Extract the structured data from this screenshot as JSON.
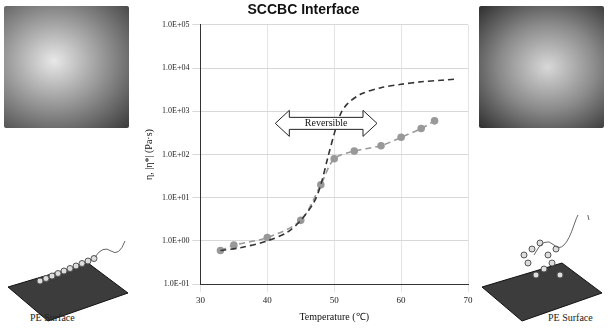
{
  "chart_data": {
    "type": "line",
    "title": "SCCBC Interface",
    "x_label": "Temperature (℃)",
    "y_label": "η, |η*| (Pa·s)",
    "log": "y",
    "grid": true,
    "xlim": [
      30,
      70
    ],
    "xticks": [
      30,
      40,
      50,
      60,
      70
    ],
    "ylim": [
      0.1,
      100000
    ],
    "yticks": [
      {
        "value": 0.1,
        "label": "1.0E-01"
      },
      {
        "value": 1,
        "label": "1.0E+00"
      },
      {
        "value": 10,
        "label": "1.0E+01"
      },
      {
        "value": 100,
        "label": "1.0E+02"
      },
      {
        "value": 1000,
        "label": "1.0E+03"
      },
      {
        "value": 10000,
        "label": "1.0E+04"
      },
      {
        "value": 100000,
        "label": "1.0E+05"
      }
    ],
    "series": [
      {
        "color": "#333333",
        "line_style": "dashed",
        "marker": "none",
        "x": [
          33,
          36,
          40,
          43,
          45,
          47,
          48,
          49,
          50,
          51,
          52,
          54,
          57,
          60,
          63,
          66,
          68
        ],
        "values": [
          0.6,
          0.7,
          1.0,
          1.6,
          3,
          8,
          20,
          80,
          300,
          900,
          1500,
          2500,
          3500,
          4200,
          4800,
          5200,
          5500
        ]
      },
      {
        "color": "#999999",
        "line_style": "dashed",
        "marker": "circle",
        "x": [
          33,
          35,
          40,
          45,
          48,
          50,
          53,
          57,
          60,
          63,
          65
        ],
        "values": [
          0.6,
          0.8,
          1.2,
          3,
          20,
          80,
          120,
          160,
          250,
          400,
          600
        ]
      }
    ],
    "annotations": [
      {
        "text": "Reversible"
      }
    ]
  },
  "panels": [
    {
      "label": "PE Surface"
    },
    {
      "label": "PE Surface"
    }
  ]
}
